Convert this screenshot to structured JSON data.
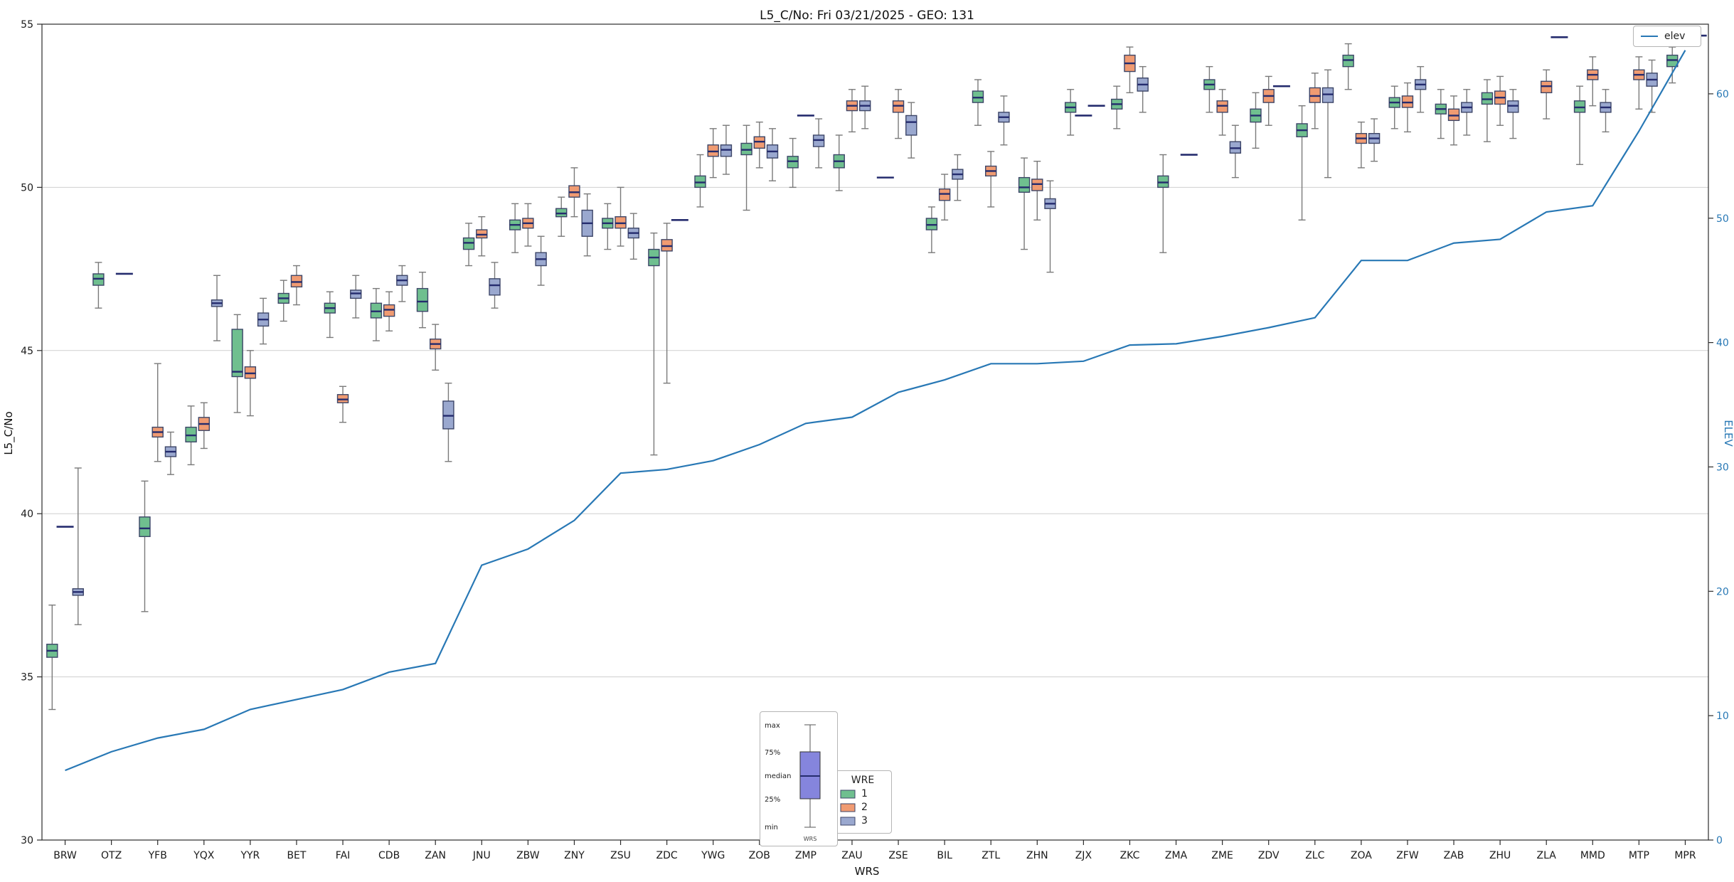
{
  "chart_data": {
    "type": "boxplot+line",
    "title": "L5_C/No: Fri 03/21/2025 - GEO: 131",
    "xlabel": "WRS",
    "ylabel_left": "L5_C/No",
    "ylabel_right": "ELEV",
    "ylim_left": [
      30,
      55
    ],
    "yticks_left": [
      30,
      35,
      40,
      45,
      50,
      55
    ],
    "ylim_right": [
      0,
      65.6
    ],
    "yticks_right": [
      0,
      10,
      20,
      30,
      40,
      50,
      60
    ],
    "grid": "horizontal",
    "categories": [
      "BRW",
      "OTZ",
      "YFB",
      "YQX",
      "YYR",
      "BET",
      "FAI",
      "CDB",
      "ZAN",
      "JNU",
      "ZBW",
      "ZNY",
      "ZSU",
      "ZDC",
      "YWG",
      "ZOB",
      "ZMP",
      "ZAU",
      "ZSE",
      "BIL",
      "ZTL",
      "ZHN",
      "ZJX",
      "ZKC",
      "ZMA",
      "ZME",
      "ZDV",
      "ZLC",
      "ZOA",
      "ZFW",
      "ZAB",
      "ZHU",
      "ZLA",
      "MMD",
      "MTP",
      "MPR"
    ],
    "box_style": {
      "edge": "#3d4668",
      "median": "#252c6e",
      "whisker": "#7a7a7a"
    },
    "legend_wre": {
      "title": "WRE",
      "entries": [
        {
          "label": "1",
          "color": "#6fbf8f"
        },
        {
          "label": "2",
          "color": "#f09b72"
        },
        {
          "label": "3",
          "color": "#9aa8cf"
        }
      ]
    },
    "legend_elev": {
      "label": "elev",
      "color": "#2878b5"
    },
    "inset": {
      "labels": [
        "max",
        "75%",
        "median",
        "25%",
        "min"
      ],
      "xlabel": "WRS",
      "box_color": "#8585dd"
    },
    "series": [
      {
        "name": "1",
        "color": "#6fbf8f",
        "values": [
          [
            34.0,
            35.6,
            35.8,
            36.0,
            37.2
          ],
          [
            46.3,
            47.0,
            47.2,
            47.35,
            47.7
          ],
          [
            37.0,
            39.3,
            39.55,
            39.9,
            41.0
          ],
          [
            41.5,
            42.2,
            42.4,
            42.65,
            43.3
          ],
          [
            43.1,
            44.2,
            44.35,
            45.65,
            46.1
          ],
          [
            45.9,
            46.45,
            46.6,
            46.75,
            47.15
          ],
          [
            45.4,
            46.15,
            46.3,
            46.45,
            46.8
          ],
          [
            45.3,
            46.0,
            46.2,
            46.45,
            46.9
          ],
          [
            45.7,
            46.2,
            46.5,
            46.9,
            47.4
          ],
          [
            47.6,
            48.1,
            48.3,
            48.45,
            48.9
          ],
          [
            48.0,
            48.7,
            48.85,
            49.0,
            49.5
          ],
          [
            48.5,
            49.1,
            49.2,
            49.35,
            49.7
          ],
          [
            48.1,
            48.75,
            48.9,
            49.05,
            49.5
          ],
          [
            41.8,
            47.6,
            47.85,
            48.1,
            48.6
          ],
          [
            49.4,
            50.0,
            50.15,
            50.35,
            51.0
          ],
          [
            49.3,
            51.0,
            51.15,
            51.35,
            51.9
          ],
          [
            50.0,
            50.6,
            50.8,
            50.95,
            51.5
          ],
          [
            49.9,
            50.6,
            50.8,
            51.0,
            51.6
          ],
          [
            50.3,
            50.3,
            50.3,
            50.3,
            50.3
          ],
          [
            48.0,
            48.7,
            48.85,
            49.05,
            49.4
          ],
          [
            51.9,
            52.6,
            52.75,
            52.95,
            53.3
          ],
          [
            48.1,
            49.85,
            50.0,
            50.3,
            50.9
          ],
          [
            51.6,
            52.3,
            52.45,
            52.6,
            53.0
          ],
          [
            51.8,
            52.4,
            52.55,
            52.7,
            53.1
          ],
          [
            48.0,
            50.0,
            50.15,
            50.35,
            51.0
          ],
          [
            52.3,
            53.0,
            53.15,
            53.3,
            53.7
          ],
          [
            51.2,
            52.0,
            52.2,
            52.4,
            52.9
          ],
          [
            49.0,
            51.55,
            51.75,
            51.95,
            52.5
          ],
          [
            53.0,
            53.7,
            53.9,
            54.05,
            54.4
          ],
          [
            51.8,
            52.45,
            52.6,
            52.75,
            53.1
          ],
          [
            51.5,
            52.25,
            52.4,
            52.55,
            53.0
          ],
          [
            51.4,
            52.55,
            52.7,
            52.9,
            53.3
          ],
          null,
          [
            50.7,
            52.3,
            52.45,
            52.65,
            53.1
          ],
          null,
          [
            53.2,
            53.7,
            53.9,
            54.05,
            54.3
          ]
        ]
      },
      {
        "name": "2",
        "color": "#f09b72",
        "values": [
          [
            39.6,
            39.6,
            39.6,
            39.6,
            39.6
          ],
          null,
          [
            41.6,
            42.35,
            42.5,
            42.65,
            44.6
          ],
          [
            42.0,
            42.55,
            42.75,
            42.95,
            43.4
          ],
          [
            43.0,
            44.15,
            44.3,
            44.5,
            45.0
          ],
          [
            46.4,
            46.95,
            47.1,
            47.3,
            47.6
          ],
          [
            42.8,
            43.4,
            43.5,
            43.65,
            43.9
          ],
          [
            45.6,
            46.05,
            46.25,
            46.4,
            46.8
          ],
          [
            44.4,
            45.05,
            45.2,
            45.35,
            45.8
          ],
          [
            47.9,
            48.45,
            48.55,
            48.7,
            49.1
          ],
          [
            48.2,
            48.75,
            48.9,
            49.05,
            49.5
          ],
          [
            49.1,
            49.7,
            49.85,
            50.05,
            50.6
          ],
          [
            48.2,
            48.75,
            48.9,
            49.1,
            50.0
          ],
          [
            44.0,
            48.05,
            48.2,
            48.4,
            48.9
          ],
          [
            50.3,
            50.95,
            51.1,
            51.3,
            51.8
          ],
          [
            50.6,
            51.2,
            51.4,
            51.55,
            52.0
          ],
          [
            52.2,
            52.2,
            52.2,
            52.2,
            52.2
          ],
          [
            51.7,
            52.35,
            52.5,
            52.65,
            53.0
          ],
          [
            51.5,
            52.3,
            52.5,
            52.65,
            53.0
          ],
          [
            49.0,
            49.6,
            49.8,
            49.95,
            50.4
          ],
          [
            49.4,
            50.35,
            50.5,
            50.65,
            51.1
          ],
          [
            49.0,
            49.9,
            50.1,
            50.25,
            50.8
          ],
          [
            52.2,
            52.2,
            52.2,
            52.2,
            52.2
          ],
          [
            52.9,
            53.55,
            53.8,
            54.05,
            54.3
          ],
          null,
          [
            51.6,
            52.3,
            52.5,
            52.65,
            53.0
          ],
          [
            51.9,
            52.6,
            52.8,
            53.0,
            53.4
          ],
          [
            51.8,
            52.6,
            52.8,
            53.05,
            53.5
          ],
          [
            50.6,
            51.35,
            51.5,
            51.65,
            52.0
          ],
          [
            51.7,
            52.45,
            52.6,
            52.8,
            53.2
          ],
          [
            51.3,
            52.05,
            52.2,
            52.4,
            52.8
          ],
          [
            51.9,
            52.55,
            52.75,
            52.95,
            53.4
          ],
          [
            52.1,
            52.9,
            53.1,
            53.25,
            53.6
          ],
          [
            52.5,
            53.3,
            53.45,
            53.6,
            54.0
          ],
          [
            52.4,
            53.3,
            53.45,
            53.6,
            54.0
          ],
          null
        ]
      },
      {
        "name": "3",
        "color": "#9aa8cf",
        "values": [
          [
            36.6,
            37.5,
            37.6,
            37.7,
            41.4
          ],
          [
            47.35,
            47.35,
            47.35,
            47.35,
            47.35
          ],
          [
            41.2,
            41.75,
            41.9,
            42.05,
            42.5
          ],
          [
            45.3,
            46.35,
            46.45,
            46.55,
            47.3
          ],
          [
            45.2,
            45.75,
            45.95,
            46.15,
            46.6
          ],
          null,
          [
            46.0,
            46.6,
            46.75,
            46.85,
            47.3
          ],
          [
            46.5,
            47.0,
            47.15,
            47.3,
            47.6
          ],
          [
            41.6,
            42.6,
            43.0,
            43.45,
            44.0
          ],
          [
            46.3,
            46.7,
            47.0,
            47.2,
            47.7
          ],
          [
            47.0,
            47.6,
            47.8,
            48.0,
            48.5
          ],
          [
            47.9,
            48.5,
            48.9,
            49.3,
            49.8
          ],
          [
            47.8,
            48.45,
            48.6,
            48.75,
            49.2
          ],
          [
            49.0,
            49.0,
            49.0,
            49.0,
            49.0
          ],
          [
            50.4,
            50.95,
            51.15,
            51.3,
            51.9
          ],
          [
            50.2,
            50.9,
            51.1,
            51.3,
            51.8
          ],
          [
            50.6,
            51.25,
            51.45,
            51.6,
            52.1
          ],
          [
            51.8,
            52.35,
            52.5,
            52.65,
            53.1
          ],
          [
            50.9,
            51.6,
            52.0,
            52.2,
            52.6
          ],
          [
            49.6,
            50.25,
            50.4,
            50.55,
            51.0
          ],
          [
            51.3,
            52.0,
            52.15,
            52.3,
            52.8
          ],
          [
            47.4,
            49.35,
            49.5,
            49.65,
            50.2
          ],
          [
            52.5,
            52.5,
            52.5,
            52.5,
            52.5
          ],
          [
            52.3,
            52.95,
            53.15,
            53.35,
            53.7
          ],
          [
            51.0,
            51.0,
            51.0,
            51.0,
            51.0
          ],
          [
            50.3,
            51.05,
            51.2,
            51.4,
            51.9
          ],
          [
            53.1,
            53.1,
            53.1,
            53.1,
            53.1
          ],
          [
            50.3,
            52.6,
            52.85,
            53.05,
            53.6
          ],
          [
            50.8,
            51.35,
            51.5,
            51.65,
            52.1
          ],
          [
            52.3,
            53.0,
            53.15,
            53.3,
            53.7
          ],
          [
            51.6,
            52.3,
            52.45,
            52.6,
            53.0
          ],
          [
            51.5,
            52.3,
            52.5,
            52.65,
            53.0
          ],
          [
            54.6,
            54.6,
            54.6,
            54.6,
            54.6
          ],
          [
            51.7,
            52.3,
            52.45,
            52.6,
            53.0
          ],
          [
            52.3,
            53.1,
            53.3,
            53.5,
            53.9
          ],
          [
            54.65,
            54.65,
            54.65,
            54.65,
            54.65
          ]
        ]
      }
    ],
    "line": {
      "name": "elev",
      "color": "#2878b5",
      "values": [
        5.6,
        7.1,
        8.2,
        8.9,
        10.5,
        11.3,
        12.1,
        13.5,
        14.2,
        22.1,
        23.4,
        25.7,
        29.5,
        29.8,
        30.5,
        31.8,
        33.5,
        34.0,
        36.0,
        37.0,
        38.3,
        38.3,
        38.5,
        39.8,
        39.9,
        40.5,
        41.2,
        42.0,
        46.6,
        46.6,
        48.0,
        48.3,
        50.5,
        51.0,
        57.0,
        63.5
      ]
    }
  }
}
